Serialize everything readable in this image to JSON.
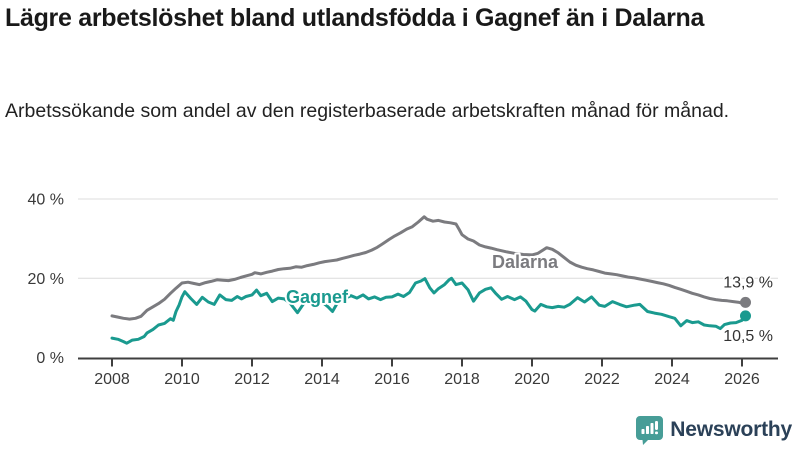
{
  "header": {
    "title": "Lägre arbetslöshet bland utlandsfödda i Gagnef än i Dalarna",
    "subtitle": "Arbetssökande som andel av den registerbaserade arbetskraften månad för månad."
  },
  "chart_data": {
    "type": "line",
    "title": "Lägre arbetslöshet bland utlandsfödda i Gagnef än i Dalarna",
    "subtitle": "Arbetssökande som andel av den registerbaserade arbetskraften månad för månad.",
    "grid": "horizontal",
    "legend": "inline-labels",
    "x_axis": {
      "range": [
        2008,
        2026.2
      ],
      "ticks": [
        2008,
        2010,
        2012,
        2014,
        2016,
        2018,
        2020,
        2022,
        2024,
        2026
      ],
      "tick_labels": [
        "2008",
        "2010",
        "2012",
        "2014",
        "2016",
        "2018",
        "2020",
        "2022",
        "2024",
        "2026"
      ]
    },
    "y_axis": {
      "range": [
        0,
        44
      ],
      "ticks": [
        0,
        20,
        40
      ],
      "tick_labels": [
        "0 %",
        "20 %",
        "40 %"
      ],
      "unit": "%"
    },
    "colors": {
      "grid": "#dcdcdc",
      "axis": "#3f3f3f",
      "tick_text": "#3a3a3a",
      "value_label": "#333333"
    },
    "series": [
      {
        "name": "Dalarna",
        "color": "#7b7b7f",
        "end_value": 13.9,
        "end_label": "13,9 %",
        "points": [
          [
            2008.0,
            10.5
          ],
          [
            2008.17,
            10.2
          ],
          [
            2008.33,
            9.9
          ],
          [
            2008.5,
            9.7
          ],
          [
            2008.67,
            9.9
          ],
          [
            2008.83,
            10.4
          ],
          [
            2009.0,
            11.9
          ],
          [
            2009.17,
            12.8
          ],
          [
            2009.33,
            13.6
          ],
          [
            2009.5,
            14.7
          ],
          [
            2009.67,
            16.2
          ],
          [
            2009.83,
            17.5
          ],
          [
            2010.0,
            18.8
          ],
          [
            2010.17,
            19.0
          ],
          [
            2010.33,
            18.7
          ],
          [
            2010.5,
            18.4
          ],
          [
            2010.67,
            18.9
          ],
          [
            2010.83,
            19.2
          ],
          [
            2011.0,
            19.6
          ],
          [
            2011.17,
            19.5
          ],
          [
            2011.33,
            19.4
          ],
          [
            2011.5,
            19.7
          ],
          [
            2011.67,
            20.2
          ],
          [
            2011.83,
            20.6
          ],
          [
            2012.0,
            21.0
          ],
          [
            2012.08,
            21.4
          ],
          [
            2012.25,
            21.1
          ],
          [
            2012.42,
            21.5
          ],
          [
            2012.58,
            21.8
          ],
          [
            2012.75,
            22.2
          ],
          [
            2012.92,
            22.4
          ],
          [
            2013.08,
            22.5
          ],
          [
            2013.25,
            22.9
          ],
          [
            2013.42,
            22.8
          ],
          [
            2013.58,
            23.2
          ],
          [
            2013.75,
            23.5
          ],
          [
            2013.92,
            23.9
          ],
          [
            2014.08,
            24.2
          ],
          [
            2014.25,
            24.4
          ],
          [
            2014.42,
            24.6
          ],
          [
            2014.58,
            25.0
          ],
          [
            2014.75,
            25.4
          ],
          [
            2014.92,
            25.8
          ],
          [
            2015.08,
            26.1
          ],
          [
            2015.25,
            26.5
          ],
          [
            2015.42,
            27.1
          ],
          [
            2015.58,
            27.8
          ],
          [
            2015.75,
            28.8
          ],
          [
            2015.92,
            29.8
          ],
          [
            2016.08,
            30.7
          ],
          [
            2016.25,
            31.5
          ],
          [
            2016.42,
            32.4
          ],
          [
            2016.58,
            33.0
          ],
          [
            2016.75,
            34.2
          ],
          [
            2016.92,
            35.5
          ],
          [
            2017.0,
            34.9
          ],
          [
            2017.17,
            34.4
          ],
          [
            2017.33,
            34.6
          ],
          [
            2017.5,
            34.2
          ],
          [
            2017.67,
            34.0
          ],
          [
            2017.83,
            33.7
          ],
          [
            2017.92,
            32.3
          ],
          [
            2018.0,
            31.0
          ],
          [
            2018.17,
            29.9
          ],
          [
            2018.33,
            29.4
          ],
          [
            2018.5,
            28.4
          ],
          [
            2018.67,
            27.9
          ],
          [
            2018.83,
            27.6
          ],
          [
            2019.0,
            27.2
          ],
          [
            2019.25,
            26.7
          ],
          [
            2019.5,
            26.3
          ],
          [
            2019.75,
            26.0
          ],
          [
            2020.0,
            25.9
          ],
          [
            2020.17,
            26.3
          ],
          [
            2020.33,
            27.2
          ],
          [
            2020.42,
            27.7
          ],
          [
            2020.58,
            27.3
          ],
          [
            2020.75,
            26.4
          ],
          [
            2020.92,
            25.2
          ],
          [
            2021.08,
            24.1
          ],
          [
            2021.25,
            23.3
          ],
          [
            2021.42,
            22.8
          ],
          [
            2021.58,
            22.4
          ],
          [
            2021.75,
            22.1
          ],
          [
            2021.92,
            21.7
          ],
          [
            2022.08,
            21.3
          ],
          [
            2022.25,
            21.1
          ],
          [
            2022.42,
            20.9
          ],
          [
            2022.58,
            20.6
          ],
          [
            2022.75,
            20.3
          ],
          [
            2022.92,
            20.1
          ],
          [
            2023.08,
            19.8
          ],
          [
            2023.25,
            19.5
          ],
          [
            2023.42,
            19.2
          ],
          [
            2023.58,
            18.9
          ],
          [
            2023.75,
            18.6
          ],
          [
            2023.92,
            18.2
          ],
          [
            2024.08,
            17.7
          ],
          [
            2024.25,
            17.2
          ],
          [
            2024.42,
            16.7
          ],
          [
            2024.58,
            16.2
          ],
          [
            2024.75,
            15.8
          ],
          [
            2024.92,
            15.3
          ],
          [
            2025.08,
            14.9
          ],
          [
            2025.25,
            14.6
          ],
          [
            2025.42,
            14.4
          ],
          [
            2025.58,
            14.3
          ],
          [
            2025.75,
            14.1
          ],
          [
            2025.92,
            13.9
          ],
          [
            2026.0,
            13.7
          ],
          [
            2026.1,
            13.9
          ]
        ]
      },
      {
        "name": "Gagnef",
        "color": "#1a9a8f",
        "end_value": 10.5,
        "end_label": "10,5 %",
        "points": [
          [
            2008.0,
            4.9
          ],
          [
            2008.17,
            4.6
          ],
          [
            2008.33,
            4.0
          ],
          [
            2008.42,
            3.6
          ],
          [
            2008.58,
            4.4
          ],
          [
            2008.75,
            4.6
          ],
          [
            2008.92,
            5.3
          ],
          [
            2009.0,
            6.2
          ],
          [
            2009.17,
            7.1
          ],
          [
            2009.33,
            8.2
          ],
          [
            2009.5,
            8.6
          ],
          [
            2009.67,
            9.8
          ],
          [
            2009.75,
            9.4
          ],
          [
            2009.83,
            11.6
          ],
          [
            2009.92,
            13.3
          ],
          [
            2010.0,
            15.3
          ],
          [
            2010.08,
            16.6
          ],
          [
            2010.25,
            14.9
          ],
          [
            2010.42,
            13.4
          ],
          [
            2010.58,
            15.2
          ],
          [
            2010.75,
            14.0
          ],
          [
            2010.92,
            13.4
          ],
          [
            2011.08,
            15.8
          ],
          [
            2011.25,
            14.6
          ],
          [
            2011.42,
            14.4
          ],
          [
            2011.58,
            15.4
          ],
          [
            2011.7,
            14.8
          ],
          [
            2011.83,
            15.4
          ],
          [
            2012.0,
            15.8
          ],
          [
            2012.13,
            17.0
          ],
          [
            2012.25,
            15.6
          ],
          [
            2012.42,
            16.2
          ],
          [
            2012.58,
            14.1
          ],
          [
            2012.75,
            15.0
          ],
          [
            2012.92,
            14.8
          ],
          [
            2013.08,
            13.8
          ],
          [
            2013.3,
            11.3
          ],
          [
            2013.5,
            13.9
          ],
          [
            2013.67,
            14.6
          ],
          [
            2013.83,
            14.2
          ],
          [
            2014.0,
            14.0
          ],
          [
            2014.17,
            12.8
          ],
          [
            2014.3,
            11.6
          ],
          [
            2014.5,
            14.7
          ],
          [
            2014.67,
            15.0
          ],
          [
            2014.83,
            15.6
          ],
          [
            2015.0,
            15.0
          ],
          [
            2015.17,
            15.8
          ],
          [
            2015.33,
            14.8
          ],
          [
            2015.5,
            15.3
          ],
          [
            2015.67,
            14.6
          ],
          [
            2015.83,
            15.2
          ],
          [
            2016.0,
            15.3
          ],
          [
            2016.17,
            16.0
          ],
          [
            2016.33,
            15.4
          ],
          [
            2016.5,
            16.4
          ],
          [
            2016.67,
            18.8
          ],
          [
            2016.83,
            19.3
          ],
          [
            2016.94,
            19.9
          ],
          [
            2017.08,
            17.6
          ],
          [
            2017.2,
            16.3
          ],
          [
            2017.33,
            17.4
          ],
          [
            2017.5,
            18.4
          ],
          [
            2017.63,
            19.6
          ],
          [
            2017.7,
            20.0
          ],
          [
            2017.83,
            18.4
          ],
          [
            2018.0,
            18.8
          ],
          [
            2018.17,
            17.1
          ],
          [
            2018.33,
            14.2
          ],
          [
            2018.5,
            16.3
          ],
          [
            2018.67,
            17.2
          ],
          [
            2018.83,
            17.6
          ],
          [
            2018.95,
            16.3
          ],
          [
            2019.13,
            14.7
          ],
          [
            2019.3,
            15.4
          ],
          [
            2019.5,
            14.6
          ],
          [
            2019.67,
            15.3
          ],
          [
            2019.83,
            14.2
          ],
          [
            2020.0,
            12.1
          ],
          [
            2020.08,
            11.7
          ],
          [
            2020.25,
            13.4
          ],
          [
            2020.42,
            12.8
          ],
          [
            2020.58,
            12.6
          ],
          [
            2020.75,
            12.9
          ],
          [
            2020.92,
            12.7
          ],
          [
            2021.08,
            13.4
          ],
          [
            2021.3,
            15.1
          ],
          [
            2021.5,
            14.0
          ],
          [
            2021.7,
            15.3
          ],
          [
            2021.92,
            13.2
          ],
          [
            2022.08,
            12.9
          ],
          [
            2022.3,
            14.1
          ],
          [
            2022.5,
            13.4
          ],
          [
            2022.7,
            12.8
          ],
          [
            2022.92,
            13.2
          ],
          [
            2023.08,
            13.4
          ],
          [
            2023.3,
            11.6
          ],
          [
            2023.5,
            11.2
          ],
          [
            2023.7,
            10.9
          ],
          [
            2023.92,
            10.3
          ],
          [
            2024.08,
            9.9
          ],
          [
            2024.25,
            8.0
          ],
          [
            2024.42,
            9.3
          ],
          [
            2024.58,
            8.8
          ],
          [
            2024.75,
            9.0
          ],
          [
            2024.92,
            8.2
          ],
          [
            2025.08,
            8.0
          ],
          [
            2025.25,
            7.9
          ],
          [
            2025.38,
            7.3
          ],
          [
            2025.5,
            8.3
          ],
          [
            2025.67,
            8.7
          ],
          [
            2025.83,
            8.8
          ],
          [
            2026.0,
            9.4
          ],
          [
            2026.1,
            10.5
          ]
        ]
      }
    ]
  },
  "footer": {
    "brand": "Newsworthy",
    "brand_color": "#2b4158",
    "icon": "bar-chart-bubble-icon",
    "icon_color": "#479d97"
  }
}
